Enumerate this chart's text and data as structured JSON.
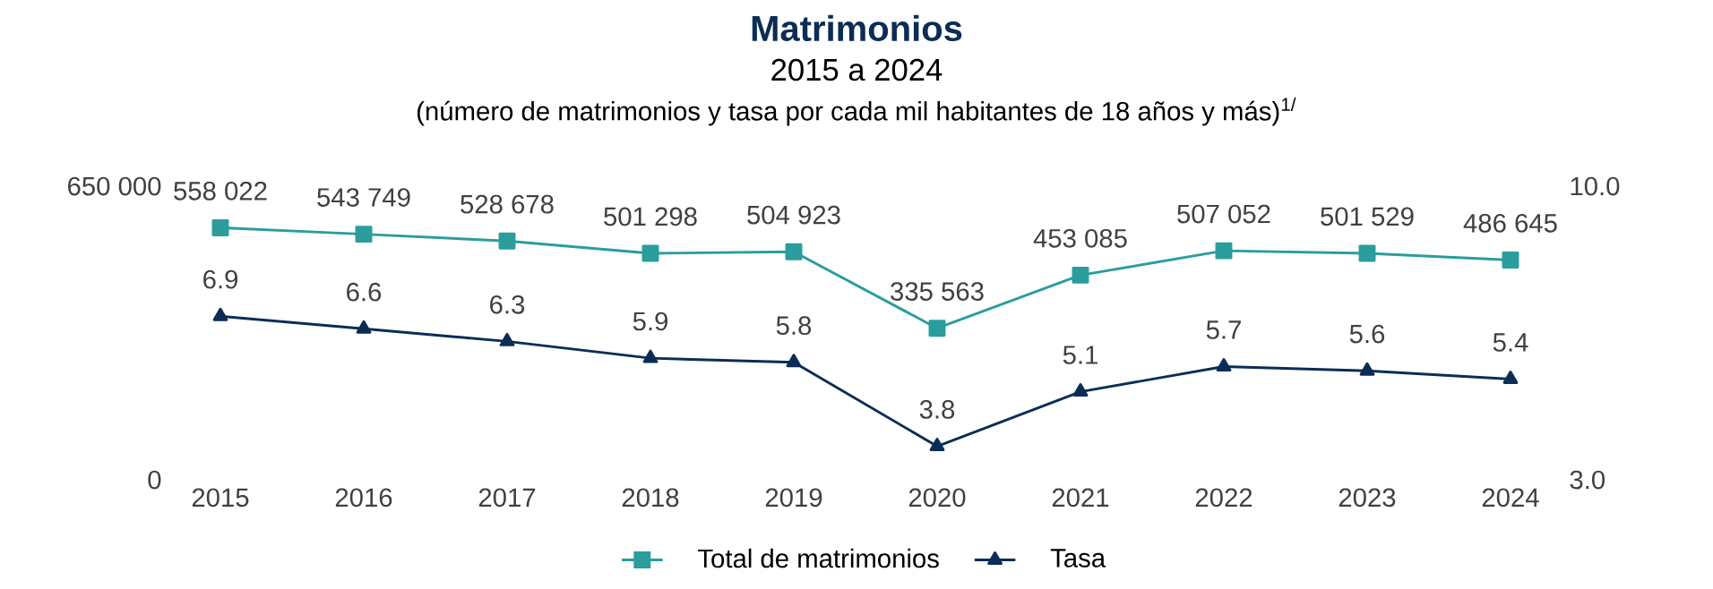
{
  "chart_data": {
    "type": "line",
    "title": "Matrimonios",
    "subtitle": "2015 a 2024",
    "annotations": [
      "(número de matrimonios y tasa por cada mil habitantes de 18 años y más)$^{1/}$"
    ],
    "categories": [
      "2015",
      "2016",
      "2017",
      "2018",
      "2019",
      "2020",
      "2021",
      "2022",
      "2023",
      "2024"
    ],
    "series": [
      {
        "name": "Total de matrimonios",
        "color": "#2a9d9c",
        "marker": "square",
        "values": [
          558022,
          543749,
          528678,
          501298,
          504923,
          335563,
          453085,
          507052,
          501529,
          486645
        ],
        "value_labels": [
          "558 022",
          "543 749",
          "528 678",
          "501 298",
          "504 923",
          "335 563",
          "453 085",
          "507 052",
          "501 529",
          "486 645"
        ]
      },
      {
        "name": "Tasa",
        "color": "#0b2d55",
        "marker": "triangle",
        "axis": "y2",
        "values": [
          6.9,
          6.6,
          6.3,
          5.9,
          5.8,
          3.8,
          5.1,
          5.7,
          5.6,
          5.4
        ],
        "value_labels": [
          "6.9",
          "6.6",
          "6.3",
          "5.9",
          "5.8",
          "3.8",
          "5.1",
          "5.7",
          "5.6",
          "5.4"
        ]
      }
    ],
    "ylim": [
      0,
      650000
    ],
    "yticks": [
      0,
      {
        "value": 650000,
        "label": "650 000"
      }
    ],
    "y2lim": [
      3,
      10
    ],
    "y2ticks": [
      {
        "value": 3,
        "label": "3.0"
      },
      {
        "value": 10,
        "label": "10.0"
      }
    ],
    "grid": false,
    "legend": "bottom"
  }
}
